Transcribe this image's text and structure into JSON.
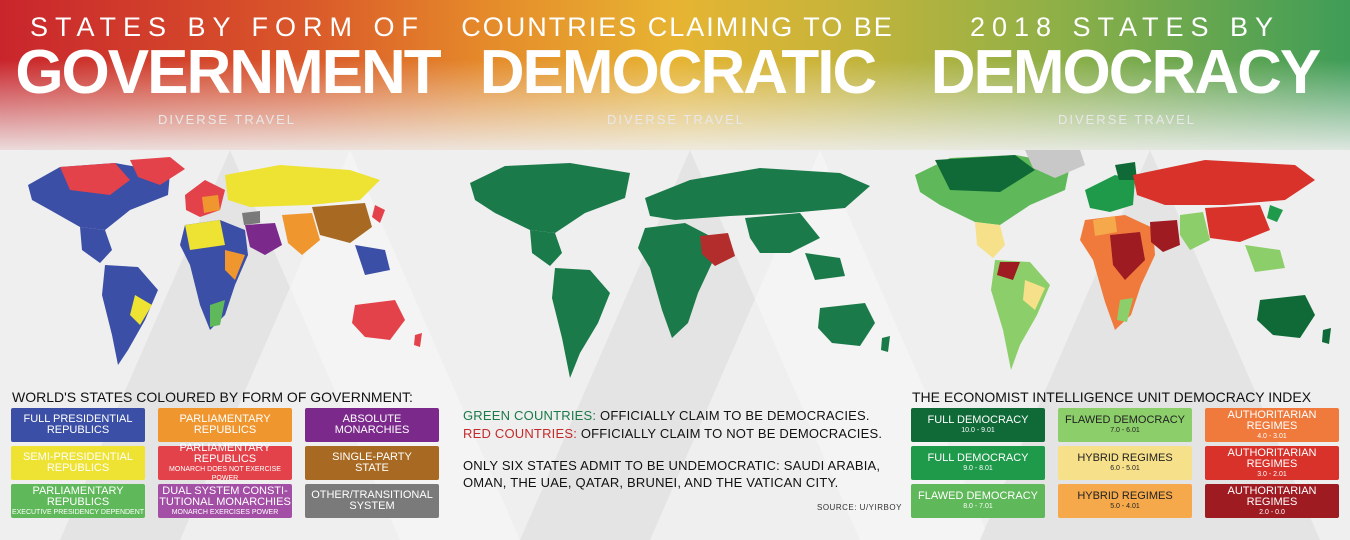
{
  "colors": {
    "full_presidential": "#3a4fa5",
    "semi_presidential": "#eee232",
    "parliamentary_exec": "#5fb85a",
    "parliamentary": "#f0962f",
    "parliamentary_monarchy": "#e4424a",
    "dual_system": "#a24fa5",
    "absolute_monarchy": "#7b2a8b",
    "single_party": "#a86a23",
    "other": "#7a7a7a",
    "claim_democracy": "#1b7a49",
    "claim_not": "#b42d2d"
  },
  "panels": [
    {
      "sub": "STATES BY FORM OF",
      "big": "GOVERNMENT",
      "credit": "DIVERSE TRAVEL"
    },
    {
      "sub": "COUNTRIES CLAIMING TO BE",
      "big": "DEMOCRATIC",
      "credit": "DIVERSE TRAVEL"
    },
    {
      "sub": "2018 STATES BY",
      "big": "DEMOCRACY",
      "credit": "DIVERSE TRAVEL"
    }
  ],
  "left_legend": {
    "title": "WORLD'S STATES COLOURED BY FORM OF GOVERNMENT:",
    "items": [
      {
        "l1": "FULL PRESIDENTIAL",
        "l1b": "REPUBLICS",
        "l2": "",
        "color": "#3a4fa5"
      },
      {
        "l1": "PARLIAMENTARY",
        "l1b": "REPUBLICS",
        "l2": "",
        "color": "#f0962f"
      },
      {
        "l1": "ABSOLUTE",
        "l1b": "MONARCHIES",
        "l2": "",
        "color": "#7b2a8b"
      },
      {
        "l1": "SEMI-PRESIDENTIAL",
        "l1b": "REPUBLICS",
        "l2": "",
        "color": "#eee232"
      },
      {
        "l1": "PARLIAMENTARY",
        "l1b": "REPUBLICS",
        "l2": "MONARCH DOES NOT EXERCISE POWER",
        "color": "#e4424a"
      },
      {
        "l1": "SINGLE-PARTY",
        "l1b": "STATE",
        "l2": "",
        "color": "#a86a23"
      },
      {
        "l1": "PARLIAMENTARY",
        "l1b": "REPUBLICS",
        "l2": "EXECUTIVE PRESIDENCY DEPENDENT",
        "color": "#5fb85a"
      },
      {
        "l1": "DUAL SYSTEM CONSTI-",
        "l1b": "TUTIONAL MONARCHIES",
        "l2": "MONARCH EXERCISES POWER",
        "color": "#a24fa5"
      },
      {
        "l1": "OTHER/TRANSITIONAL",
        "l1b": "SYSTEM",
        "l2": "",
        "color": "#7a7a7a"
      }
    ]
  },
  "middle": {
    "green_label": "GREEN COUNTRIES:",
    "green_text": " OFFICIALLY CLAIM TO BE DEMOCRACIES.",
    "red_label": "RED COUNTRIES:",
    "red_text": " OFFICIALLY CLAIM TO  NOT BE DEMOCRACIES.",
    "line3": "ONLY SIX STATES ADMIT TO BE UNDEMOCRATIC: SAUDI ARABIA,",
    "line4": "OMAN, THE UAE, QATAR, BRUNEI, AND THE VATICAN CITY.",
    "source": "SOURCE:  U/YIRBOY"
  },
  "right_legend": {
    "title": "THE ECONOMIST INTELLIGENCE UNIT DEMOCRACY INDEX",
    "items": [
      {
        "l1": "FULL DEMOCRACY",
        "l2": "10.0 - 9.01",
        "color": "#0f6a37"
      },
      {
        "l1": "FLAWED DEMOCRACY",
        "l2": "7.0 - 6.01",
        "color": "#8ccf6a",
        "dark": true
      },
      {
        "l1": "AUTHORITARIAN REGIMES",
        "l2": "4.0 - 3.01",
        "color": "#f07a3c"
      },
      {
        "l1": "FULL DEMOCRACY",
        "l2": "9.0 - 8.01",
        "color": "#1f9a4b"
      },
      {
        "l1": "HYBRID REGIMES",
        "l2": "6.0 - 5.01",
        "color": "#f7e08a",
        "dark": true
      },
      {
        "l1": "AUTHORITARIAN REGIMES",
        "l2": "3.0 - 2.01",
        "color": "#d9322b"
      },
      {
        "l1": "FLAWED DEMOCRACY",
        "l2": "8.0 - 7.01",
        "color": "#5fb85a"
      },
      {
        "l1": "HYBRID REGIMES",
        "l2": "5.0 - 4.01",
        "color": "#f5a94a",
        "dark": true
      },
      {
        "l1": "AUTHORITARIAN REGIMES",
        "l2": "2.0 - 0.0",
        "color": "#9e1b22"
      }
    ]
  }
}
